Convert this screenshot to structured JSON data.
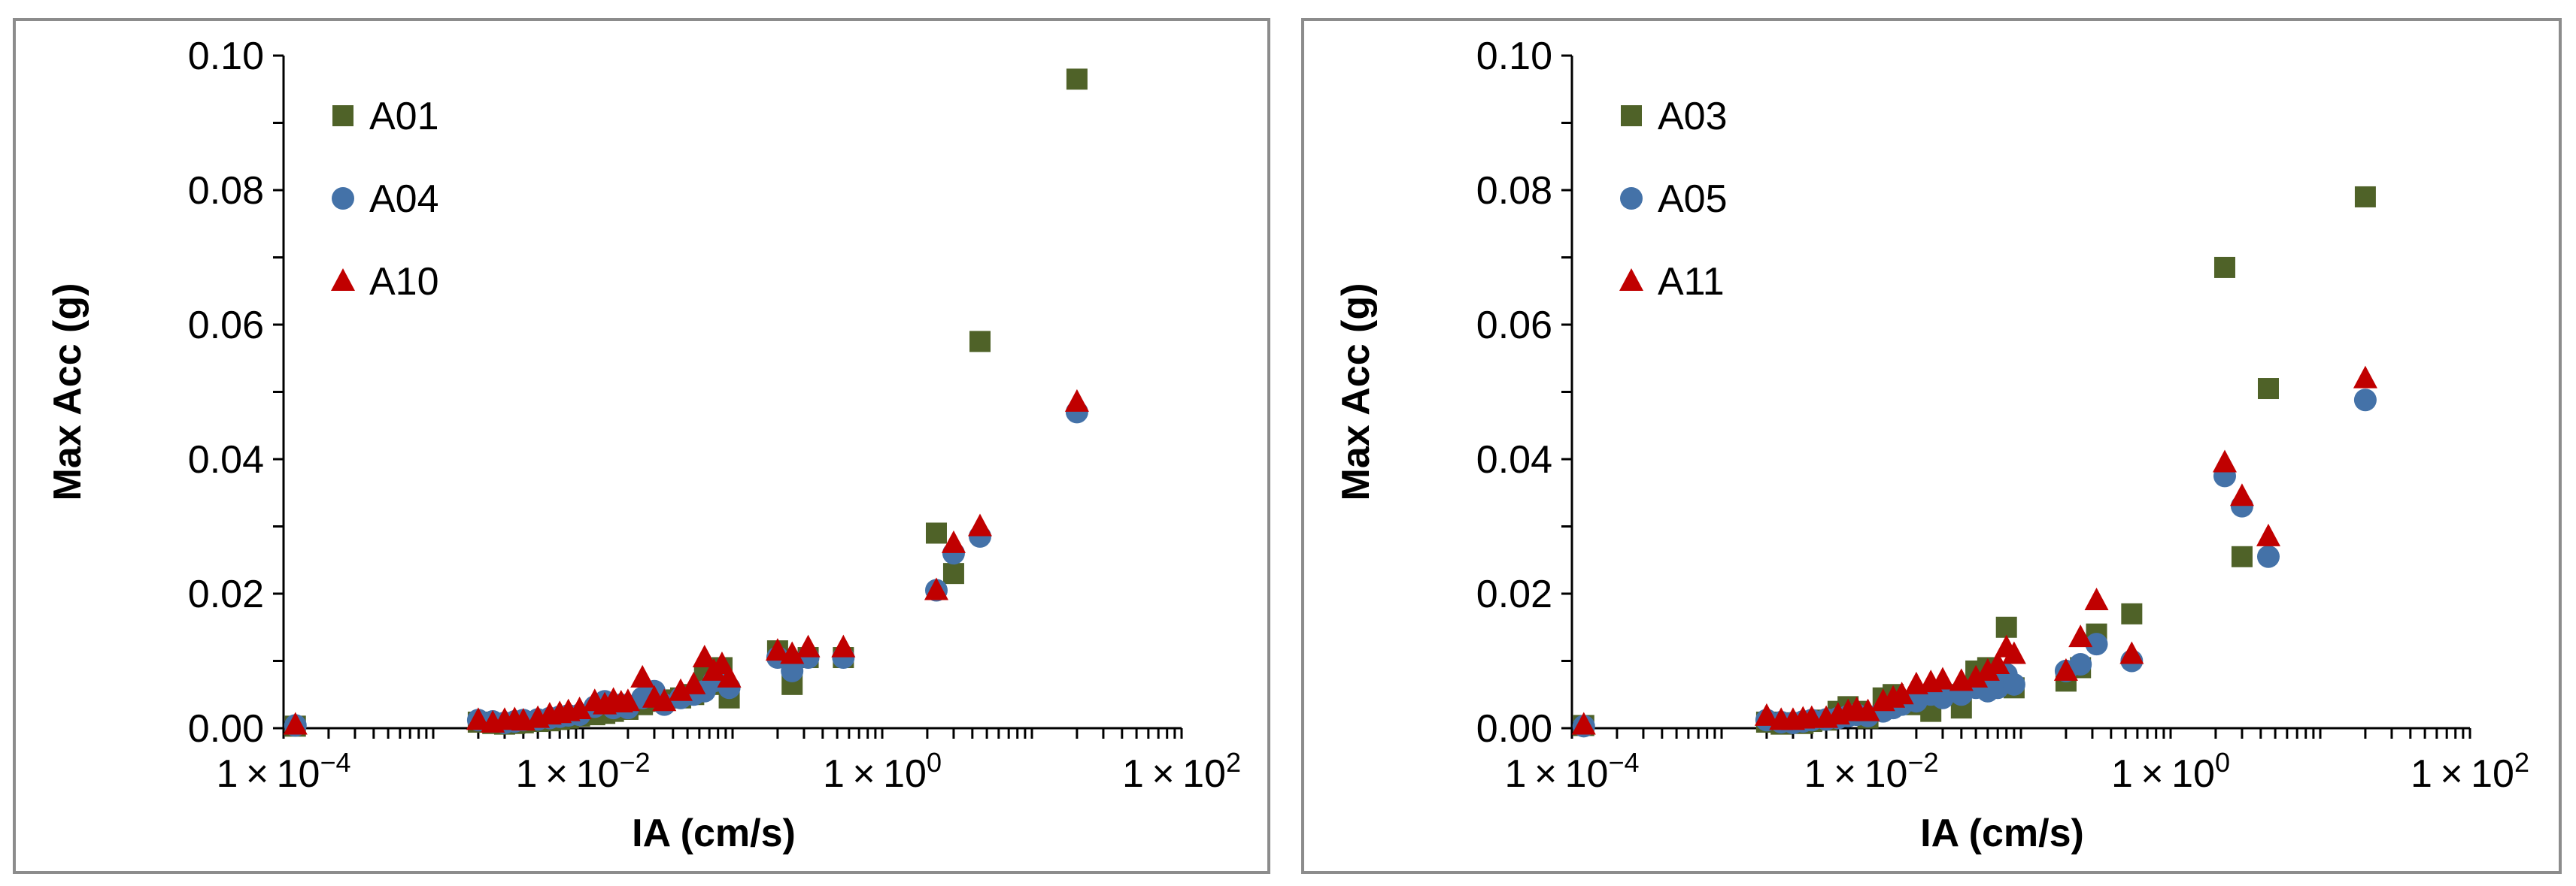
{
  "chart_data": [
    {
      "type": "scatter",
      "xscale": "log",
      "xlabel": "IA (cm/s)",
      "ylabel": "Max Acc (g)",
      "xlim": [
        0.0001,
        100
      ],
      "ylim": [
        0,
        0.1
      ],
      "yticks": [
        "0.00",
        "0.02",
        "0.04",
        "0.06",
        "0.08",
        "0.10"
      ],
      "xticks": [
        {
          "mant": "1",
          "times": "×",
          "base": "10",
          "exp": "-4"
        },
        {
          "mant": "1",
          "times": "×",
          "base": "10",
          "exp": "-2"
        },
        {
          "mant": "1",
          "times": "×",
          "base": "10",
          "exp": "0"
        },
        {
          "mant": "1",
          "times": "×",
          "base": "10",
          "exp": "2"
        }
      ],
      "legend_position": "top-left",
      "series": [
        {
          "name": "A01",
          "marker": "square",
          "color": "#4f6228",
          "points": [
            [
              0.00012,
              0.0003
            ],
            [
              0.002,
              0.0009
            ],
            [
              0.0025,
              0.0007
            ],
            [
              0.003,
              0.0006
            ],
            [
              0.0035,
              0.0007
            ],
            [
              0.004,
              0.0008
            ],
            [
              0.005,
              0.001
            ],
            [
              0.006,
              0.0011
            ],
            [
              0.007,
              0.0013
            ],
            [
              0.008,
              0.0015
            ],
            [
              0.0095,
              0.0018
            ],
            [
              0.012,
              0.002
            ],
            [
              0.014,
              0.0022
            ],
            [
              0.016,
              0.0025
            ],
            [
              0.018,
              0.003
            ],
            [
              0.02,
              0.0028
            ],
            [
              0.025,
              0.0035
            ],
            [
              0.03,
              0.004
            ],
            [
              0.035,
              0.0042
            ],
            [
              0.045,
              0.0045
            ],
            [
              0.055,
              0.005
            ],
            [
              0.065,
              0.0075
            ],
            [
              0.075,
              0.0065
            ],
            [
              0.085,
              0.009
            ],
            [
              0.095,
              0.0045
            ],
            [
              0.2,
              0.0115
            ],
            [
              0.25,
              0.0065
            ],
            [
              0.32,
              0.0105
            ],
            [
              0.55,
              0.0105
            ],
            [
              2.3,
              0.029
            ],
            [
              3.0,
              0.023
            ],
            [
              4.5,
              0.0575
            ],
            [
              20,
              0.0965
            ]
          ]
        },
        {
          "name": "A04",
          "marker": "circle",
          "color": "#4472a8",
          "points": [
            [
              0.00012,
              0.0004
            ],
            [
              0.002,
              0.0012
            ],
            [
              0.0025,
              0.001
            ],
            [
              0.003,
              0.0008
            ],
            [
              0.0035,
              0.001
            ],
            [
              0.004,
              0.0012
            ],
            [
              0.005,
              0.0013
            ],
            [
              0.006,
              0.0015
            ],
            [
              0.007,
              0.0017
            ],
            [
              0.008,
              0.0019
            ],
            [
              0.0095,
              0.002
            ],
            [
              0.012,
              0.0032
            ],
            [
              0.014,
              0.004
            ],
            [
              0.016,
              0.003
            ],
            [
              0.018,
              0.0035
            ],
            [
              0.02,
              0.003
            ],
            [
              0.025,
              0.0045
            ],
            [
              0.03,
              0.0055
            ],
            [
              0.035,
              0.0035
            ],
            [
              0.045,
              0.0045
            ],
            [
              0.055,
              0.005
            ],
            [
              0.065,
              0.0055
            ],
            [
              0.075,
              0.007
            ],
            [
              0.085,
              0.0075
            ],
            [
              0.095,
              0.006
            ],
            [
              0.2,
              0.0105
            ],
            [
              0.25,
              0.0085
            ],
            [
              0.32,
              0.0105
            ],
            [
              0.55,
              0.0105
            ],
            [
              2.3,
              0.0205
            ],
            [
              3.0,
              0.026
            ],
            [
              4.5,
              0.0285
            ],
            [
              20,
              0.047
            ]
          ]
        },
        {
          "name": "A10",
          "marker": "triangle",
          "color": "#c00000",
          "points": [
            [
              0.00012,
              0.0005
            ],
            [
              0.002,
              0.0012
            ],
            [
              0.0025,
              0.0008
            ],
            [
              0.003,
              0.0012
            ],
            [
              0.0035,
              0.0013
            ],
            [
              0.004,
              0.0011
            ],
            [
              0.005,
              0.0015
            ],
            [
              0.006,
              0.002
            ],
            [
              0.007,
              0.0022
            ],
            [
              0.008,
              0.0025
            ],
            [
              0.0095,
              0.0028
            ],
            [
              0.012,
              0.004
            ],
            [
              0.014,
              0.0035
            ],
            [
              0.016,
              0.0042
            ],
            [
              0.018,
              0.0038
            ],
            [
              0.02,
              0.004
            ],
            [
              0.025,
              0.0075
            ],
            [
              0.03,
              0.0045
            ],
            [
              0.035,
              0.004
            ],
            [
              0.045,
              0.0055
            ],
            [
              0.055,
              0.0065
            ],
            [
              0.065,
              0.0105
            ],
            [
              0.075,
              0.0085
            ],
            [
              0.085,
              0.0095
            ],
            [
              0.095,
              0.0075
            ],
            [
              0.2,
              0.0115
            ],
            [
              0.25,
              0.011
            ],
            [
              0.32,
              0.012
            ],
            [
              0.55,
              0.012
            ],
            [
              2.3,
              0.0205
            ],
            [
              3.0,
              0.0275
            ],
            [
              4.5,
              0.03
            ],
            [
              20,
              0.0485
            ]
          ]
        }
      ]
    },
    {
      "type": "scatter",
      "xscale": "log",
      "xlabel": "IA (cm/s)",
      "ylabel": "Max Acc (g)",
      "xlim": [
        0.0001,
        100
      ],
      "ylim": [
        0,
        0.1
      ],
      "yticks": [
        "0.00",
        "0.02",
        "0.04",
        "0.06",
        "0.08",
        "0.10"
      ],
      "xticks": [
        {
          "mant": "1",
          "times": "×",
          "base": "10",
          "exp": "-4"
        },
        {
          "mant": "1",
          "times": "×",
          "base": "10",
          "exp": "-2"
        },
        {
          "mant": "1",
          "times": "×",
          "base": "10",
          "exp": "0"
        },
        {
          "mant": "1",
          "times": "×",
          "base": "10",
          "exp": "2"
        }
      ],
      "legend_position": "top-left",
      "series": [
        {
          "name": "A03",
          "marker": "square",
          "color": "#4f6228",
          "points": [
            [
              0.00012,
              0.0004
            ],
            [
              0.002,
              0.0009
            ],
            [
              0.0025,
              0.0006
            ],
            [
              0.003,
              0.0008
            ],
            [
              0.0035,
              0.0007
            ],
            [
              0.004,
              0.001
            ],
            [
              0.005,
              0.0012
            ],
            [
              0.006,
              0.0025
            ],
            [
              0.007,
              0.0032
            ],
            [
              0.008,
              0.0025
            ],
            [
              0.0095,
              0.0015
            ],
            [
              0.012,
              0.0045
            ],
            [
              0.014,
              0.005
            ],
            [
              0.016,
              0.004
            ],
            [
              0.02,
              0.0035
            ],
            [
              0.025,
              0.0025
            ],
            [
              0.03,
              0.005
            ],
            [
              0.04,
              0.003
            ],
            [
              0.05,
              0.0085
            ],
            [
              0.06,
              0.009
            ],
            [
              0.07,
              0.0075
            ],
            [
              0.08,
              0.015
            ],
            [
              0.09,
              0.006
            ],
            [
              0.2,
              0.007
            ],
            [
              0.25,
              0.009
            ],
            [
              0.32,
              0.014
            ],
            [
              0.55,
              0.017
            ],
            [
              2.3,
              0.0685
            ],
            [
              3.0,
              0.0255
            ],
            [
              4.5,
              0.0505
            ],
            [
              20,
              0.079
            ]
          ]
        },
        {
          "name": "A05",
          "marker": "circle",
          "color": "#4472a8",
          "points": [
            [
              0.00012,
              0.0003
            ],
            [
              0.002,
              0.0012
            ],
            [
              0.0025,
              0.0009
            ],
            [
              0.003,
              0.0008
            ],
            [
              0.0035,
              0.001
            ],
            [
              0.004,
              0.0012
            ],
            [
              0.005,
              0.0013
            ],
            [
              0.006,
              0.0015
            ],
            [
              0.007,
              0.0018
            ],
            [
              0.008,
              0.002
            ],
            [
              0.0095,
              0.0018
            ],
            [
              0.012,
              0.0025
            ],
            [
              0.014,
              0.003
            ],
            [
              0.016,
              0.0035
            ],
            [
              0.02,
              0.004
            ],
            [
              0.025,
              0.005
            ],
            [
              0.03,
              0.0045
            ],
            [
              0.04,
              0.005
            ],
            [
              0.05,
              0.006
            ],
            [
              0.06,
              0.0055
            ],
            [
              0.07,
              0.006
            ],
            [
              0.08,
              0.008
            ],
            [
              0.09,
              0.0065
            ],
            [
              0.2,
              0.0085
            ],
            [
              0.25,
              0.0095
            ],
            [
              0.32,
              0.0125
            ],
            [
              0.55,
              0.01
            ],
            [
              2.3,
              0.0375
            ],
            [
              3.0,
              0.033
            ],
            [
              4.5,
              0.0255
            ],
            [
              20,
              0.0488
            ]
          ]
        },
        {
          "name": "A11",
          "marker": "triangle",
          "color": "#c00000",
          "points": [
            [
              0.00012,
              0.0005
            ],
            [
              0.002,
              0.0018
            ],
            [
              0.0025,
              0.0012
            ],
            [
              0.003,
              0.0012
            ],
            [
              0.0035,
              0.0014
            ],
            [
              0.004,
              0.0015
            ],
            [
              0.005,
              0.0015
            ],
            [
              0.006,
              0.002
            ],
            [
              0.007,
              0.0025
            ],
            [
              0.008,
              0.0028
            ],
            [
              0.0095,
              0.0025
            ],
            [
              0.012,
              0.004
            ],
            [
              0.014,
              0.0045
            ],
            [
              0.016,
              0.005
            ],
            [
              0.02,
              0.0065
            ],
            [
              0.025,
              0.0068
            ],
            [
              0.03,
              0.0072
            ],
            [
              0.04,
              0.007
            ],
            [
              0.05,
              0.0075
            ],
            [
              0.06,
              0.0085
            ],
            [
              0.07,
              0.0095
            ],
            [
              0.08,
              0.012
            ],
            [
              0.09,
              0.011
            ],
            [
              0.2,
              0.0085
            ],
            [
              0.25,
              0.0135
            ],
            [
              0.32,
              0.019
            ],
            [
              0.55,
              0.011
            ],
            [
              2.3,
              0.0395
            ],
            [
              3.0,
              0.0345
            ],
            [
              4.5,
              0.0285
            ],
            [
              20,
              0.052
            ]
          ]
        }
      ]
    }
  ]
}
